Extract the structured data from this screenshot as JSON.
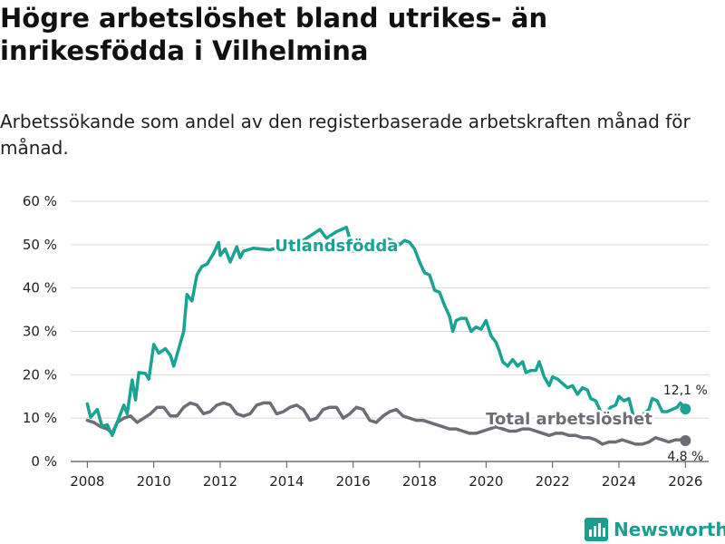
{
  "title": "Högre arbetslöshet bland utrikes- än inrikesfödda i Vilhelmina",
  "subtitle": "Arbetssökande som andel av den registerbaserade arbetskraften månad för månad.",
  "brand": {
    "name": "Newsworthy",
    "icon": "bar-chart-logo-icon"
  },
  "colors": {
    "utlandsfodda": "#1aa393",
    "total": "#6d6e75",
    "grid": "#d9d9d9",
    "text": "#222222"
  },
  "chart_data": {
    "type": "line",
    "title": "Högre arbetslöshet bland utrikes- än inrikesfödda i Vilhelmina",
    "xlabel": "",
    "ylabel": "",
    "xlim": [
      2007.5,
      2026.7
    ],
    "ylim": [
      0,
      60
    ],
    "y_ticks": [
      0,
      10,
      20,
      30,
      40,
      50,
      60
    ],
    "y_tick_labels": [
      "0 %",
      "10 %",
      "20 %",
      "30 %",
      "40 %",
      "50 %",
      "60 %"
    ],
    "x_ticks": [
      2008,
      2010,
      2012,
      2014,
      2016,
      2018,
      2020,
      2022,
      2024,
      2026
    ],
    "x_tick_labels": [
      "2008",
      "2010",
      "2012",
      "2014",
      "2016",
      "2018",
      "2020",
      "2022",
      "2024",
      "2026"
    ],
    "grid": true,
    "series": [
      {
        "name": "Utlandsfödda",
        "color": "#1aa393",
        "end_label": "12,1 %",
        "points": [
          [
            2008.0,
            13.3
          ],
          [
            2008.1,
            10.2
          ],
          [
            2008.3,
            12.0
          ],
          [
            2008.45,
            8.0
          ],
          [
            2008.6,
            8.5
          ],
          [
            2008.75,
            6.0
          ],
          [
            2008.9,
            9.0
          ],
          [
            2009.1,
            13.0
          ],
          [
            2009.2,
            11.0
          ],
          [
            2009.35,
            18.8
          ],
          [
            2009.45,
            14.2
          ],
          [
            2009.55,
            20.5
          ],
          [
            2009.75,
            20.3
          ],
          [
            2009.85,
            19.0
          ],
          [
            2010.0,
            27.0
          ],
          [
            2010.15,
            25.0
          ],
          [
            2010.35,
            26.0
          ],
          [
            2010.5,
            24.5
          ],
          [
            2010.6,
            22.0
          ],
          [
            2010.75,
            26.0
          ],
          [
            2010.9,
            30.0
          ],
          [
            2011.0,
            38.5
          ],
          [
            2011.15,
            37.0
          ],
          [
            2011.3,
            43.0
          ],
          [
            2011.45,
            45.0
          ],
          [
            2011.6,
            45.5
          ],
          [
            2011.8,
            48.0
          ],
          [
            2011.95,
            50.5
          ],
          [
            2012.0,
            47.5
          ],
          [
            2012.15,
            49.0
          ],
          [
            2012.3,
            46.0
          ],
          [
            2012.5,
            49.5
          ],
          [
            2012.6,
            47.0
          ],
          [
            2012.7,
            48.5
          ],
          [
            2013.0,
            49.2
          ],
          [
            2013.5,
            48.8
          ],
          [
            2014.0,
            50.0
          ],
          [
            2014.5,
            51.0
          ],
          [
            2015.0,
            53.5
          ],
          [
            2015.2,
            51.5
          ],
          [
            2015.5,
            53.0
          ],
          [
            2015.8,
            54.0
          ],
          [
            2016.0,
            48.5
          ],
          [
            2016.2,
            49.5
          ],
          [
            2016.5,
            50.0
          ],
          [
            2016.6,
            48.5
          ],
          [
            2016.8,
            48.5
          ],
          [
            2017.0,
            51.5
          ],
          [
            2017.15,
            51.0
          ],
          [
            2017.3,
            50.5
          ],
          [
            2017.4,
            50.0
          ],
          [
            2017.55,
            51.0
          ],
          [
            2017.7,
            50.5
          ],
          [
            2017.85,
            49.0
          ],
          [
            2018.0,
            46.0
          ],
          [
            2018.15,
            43.5
          ],
          [
            2018.3,
            43.0
          ],
          [
            2018.45,
            39.5
          ],
          [
            2018.6,
            39.0
          ],
          [
            2018.75,
            36.0
          ],
          [
            2018.9,
            33.5
          ],
          [
            2019.0,
            30.0
          ],
          [
            2019.1,
            32.5
          ],
          [
            2019.25,
            33.0
          ],
          [
            2019.4,
            33.0
          ],
          [
            2019.55,
            30.0
          ],
          [
            2019.7,
            31.0
          ],
          [
            2019.85,
            30.5
          ],
          [
            2020.0,
            32.5
          ],
          [
            2020.15,
            29.0
          ],
          [
            2020.3,
            27.5
          ],
          [
            2020.4,
            25.5
          ],
          [
            2020.5,
            23.0
          ],
          [
            2020.65,
            22.0
          ],
          [
            2020.8,
            23.5
          ],
          [
            2020.95,
            22.0
          ],
          [
            2021.1,
            23.0
          ],
          [
            2021.2,
            20.5
          ],
          [
            2021.35,
            21.0
          ],
          [
            2021.5,
            21.0
          ],
          [
            2021.6,
            23.0
          ],
          [
            2021.75,
            19.5
          ],
          [
            2021.9,
            17.5
          ],
          [
            2022.0,
            19.5
          ],
          [
            2022.15,
            19.0
          ],
          [
            2022.3,
            18.0
          ],
          [
            2022.45,
            17.0
          ],
          [
            2022.6,
            17.5
          ],
          [
            2022.75,
            15.5
          ],
          [
            2022.9,
            17.0
          ],
          [
            2023.05,
            16.5
          ],
          [
            2023.15,
            14.5
          ],
          [
            2023.3,
            14.0
          ],
          [
            2023.45,
            11.5
          ],
          [
            2023.6,
            11.0
          ],
          [
            2023.75,
            12.5
          ],
          [
            2023.9,
            13.0
          ],
          [
            2024.0,
            15.0
          ],
          [
            2024.15,
            14.0
          ],
          [
            2024.3,
            14.5
          ],
          [
            2024.45,
            10.0
          ],
          [
            2024.6,
            10.0
          ],
          [
            2024.75,
            11.0
          ],
          [
            2024.9,
            12.0
          ],
          [
            2025.0,
            14.5
          ],
          [
            2025.15,
            14.0
          ],
          [
            2025.3,
            11.5
          ],
          [
            2025.45,
            11.5
          ],
          [
            2025.6,
            12.0
          ],
          [
            2025.75,
            12.5
          ],
          [
            2025.85,
            13.5
          ],
          [
            2026.0,
            12.1
          ]
        ]
      },
      {
        "name": "Total arbetslöshet",
        "color": "#6d6e75",
        "end_label": "4,8 %",
        "points": [
          [
            2008.0,
            9.5
          ],
          [
            2008.2,
            9.0
          ],
          [
            2008.4,
            8.0
          ],
          [
            2008.6,
            7.5
          ],
          [
            2008.75,
            6.5
          ],
          [
            2008.9,
            9.0
          ],
          [
            2009.1,
            10.0
          ],
          [
            2009.3,
            10.5
          ],
          [
            2009.5,
            9.0
          ],
          [
            2009.7,
            10.0
          ],
          [
            2009.9,
            11.0
          ],
          [
            2010.1,
            12.5
          ],
          [
            2010.3,
            12.5
          ],
          [
            2010.5,
            10.5
          ],
          [
            2010.7,
            10.5
          ],
          [
            2010.9,
            12.5
          ],
          [
            2011.1,
            13.5
          ],
          [
            2011.3,
            13.0
          ],
          [
            2011.5,
            11.0
          ],
          [
            2011.7,
            11.5
          ],
          [
            2011.9,
            13.0
          ],
          [
            2012.1,
            13.5
          ],
          [
            2012.3,
            13.0
          ],
          [
            2012.5,
            11.0
          ],
          [
            2012.7,
            10.5
          ],
          [
            2012.9,
            11.0
          ],
          [
            2013.1,
            13.0
          ],
          [
            2013.3,
            13.5
          ],
          [
            2013.5,
            13.5
          ],
          [
            2013.7,
            11.0
          ],
          [
            2013.9,
            11.5
          ],
          [
            2014.1,
            12.5
          ],
          [
            2014.3,
            13.0
          ],
          [
            2014.5,
            12.0
          ],
          [
            2014.7,
            9.5
          ],
          [
            2014.9,
            10.0
          ],
          [
            2015.1,
            12.0
          ],
          [
            2015.3,
            12.5
          ],
          [
            2015.5,
            12.5
          ],
          [
            2015.7,
            10.0
          ],
          [
            2015.9,
            11.0
          ],
          [
            2016.1,
            12.5
          ],
          [
            2016.3,
            12.0
          ],
          [
            2016.5,
            9.5
          ],
          [
            2016.7,
            9.0
          ],
          [
            2016.9,
            10.5
          ],
          [
            2017.1,
            11.5
          ],
          [
            2017.3,
            12.0
          ],
          [
            2017.5,
            10.5
          ],
          [
            2017.7,
            10.0
          ],
          [
            2017.9,
            9.5
          ],
          [
            2018.1,
            9.5
          ],
          [
            2018.3,
            9.0
          ],
          [
            2018.5,
            8.5
          ],
          [
            2018.7,
            8.0
          ],
          [
            2018.9,
            7.5
          ],
          [
            2019.1,
            7.5
          ],
          [
            2019.3,
            7.0
          ],
          [
            2019.5,
            6.5
          ],
          [
            2019.7,
            6.5
          ],
          [
            2019.9,
            7.0
          ],
          [
            2020.1,
            7.5
          ],
          [
            2020.3,
            8.0
          ],
          [
            2020.5,
            7.5
          ],
          [
            2020.7,
            7.0
          ],
          [
            2020.9,
            7.0
          ],
          [
            2021.1,
            7.5
          ],
          [
            2021.3,
            7.5
          ],
          [
            2021.5,
            7.0
          ],
          [
            2021.7,
            6.5
          ],
          [
            2021.9,
            6.0
          ],
          [
            2022.1,
            6.5
          ],
          [
            2022.3,
            6.5
          ],
          [
            2022.5,
            6.0
          ],
          [
            2022.7,
            6.0
          ],
          [
            2022.9,
            5.5
          ],
          [
            2023.1,
            5.5
          ],
          [
            2023.3,
            5.0
          ],
          [
            2023.5,
            4.0
          ],
          [
            2023.7,
            4.5
          ],
          [
            2023.9,
            4.5
          ],
          [
            2024.1,
            5.0
          ],
          [
            2024.3,
            4.5
          ],
          [
            2024.5,
            4.0
          ],
          [
            2024.7,
            4.0
          ],
          [
            2024.9,
            4.5
          ],
          [
            2025.1,
            5.5
          ],
          [
            2025.3,
            5.0
          ],
          [
            2025.5,
            4.5
          ],
          [
            2025.7,
            5.0
          ],
          [
            2025.85,
            5.0
          ],
          [
            2026.0,
            4.8
          ]
        ]
      }
    ],
    "annotations": [
      {
        "text": "Utlandsfödda",
        "series": "Utlandsfödda",
        "x": 2015.5,
        "y": 50.0
      },
      {
        "text": "Total arbetslöshet",
        "series": "Total arbetslöshet",
        "x": 2022.5,
        "y": 10.0
      }
    ]
  }
}
